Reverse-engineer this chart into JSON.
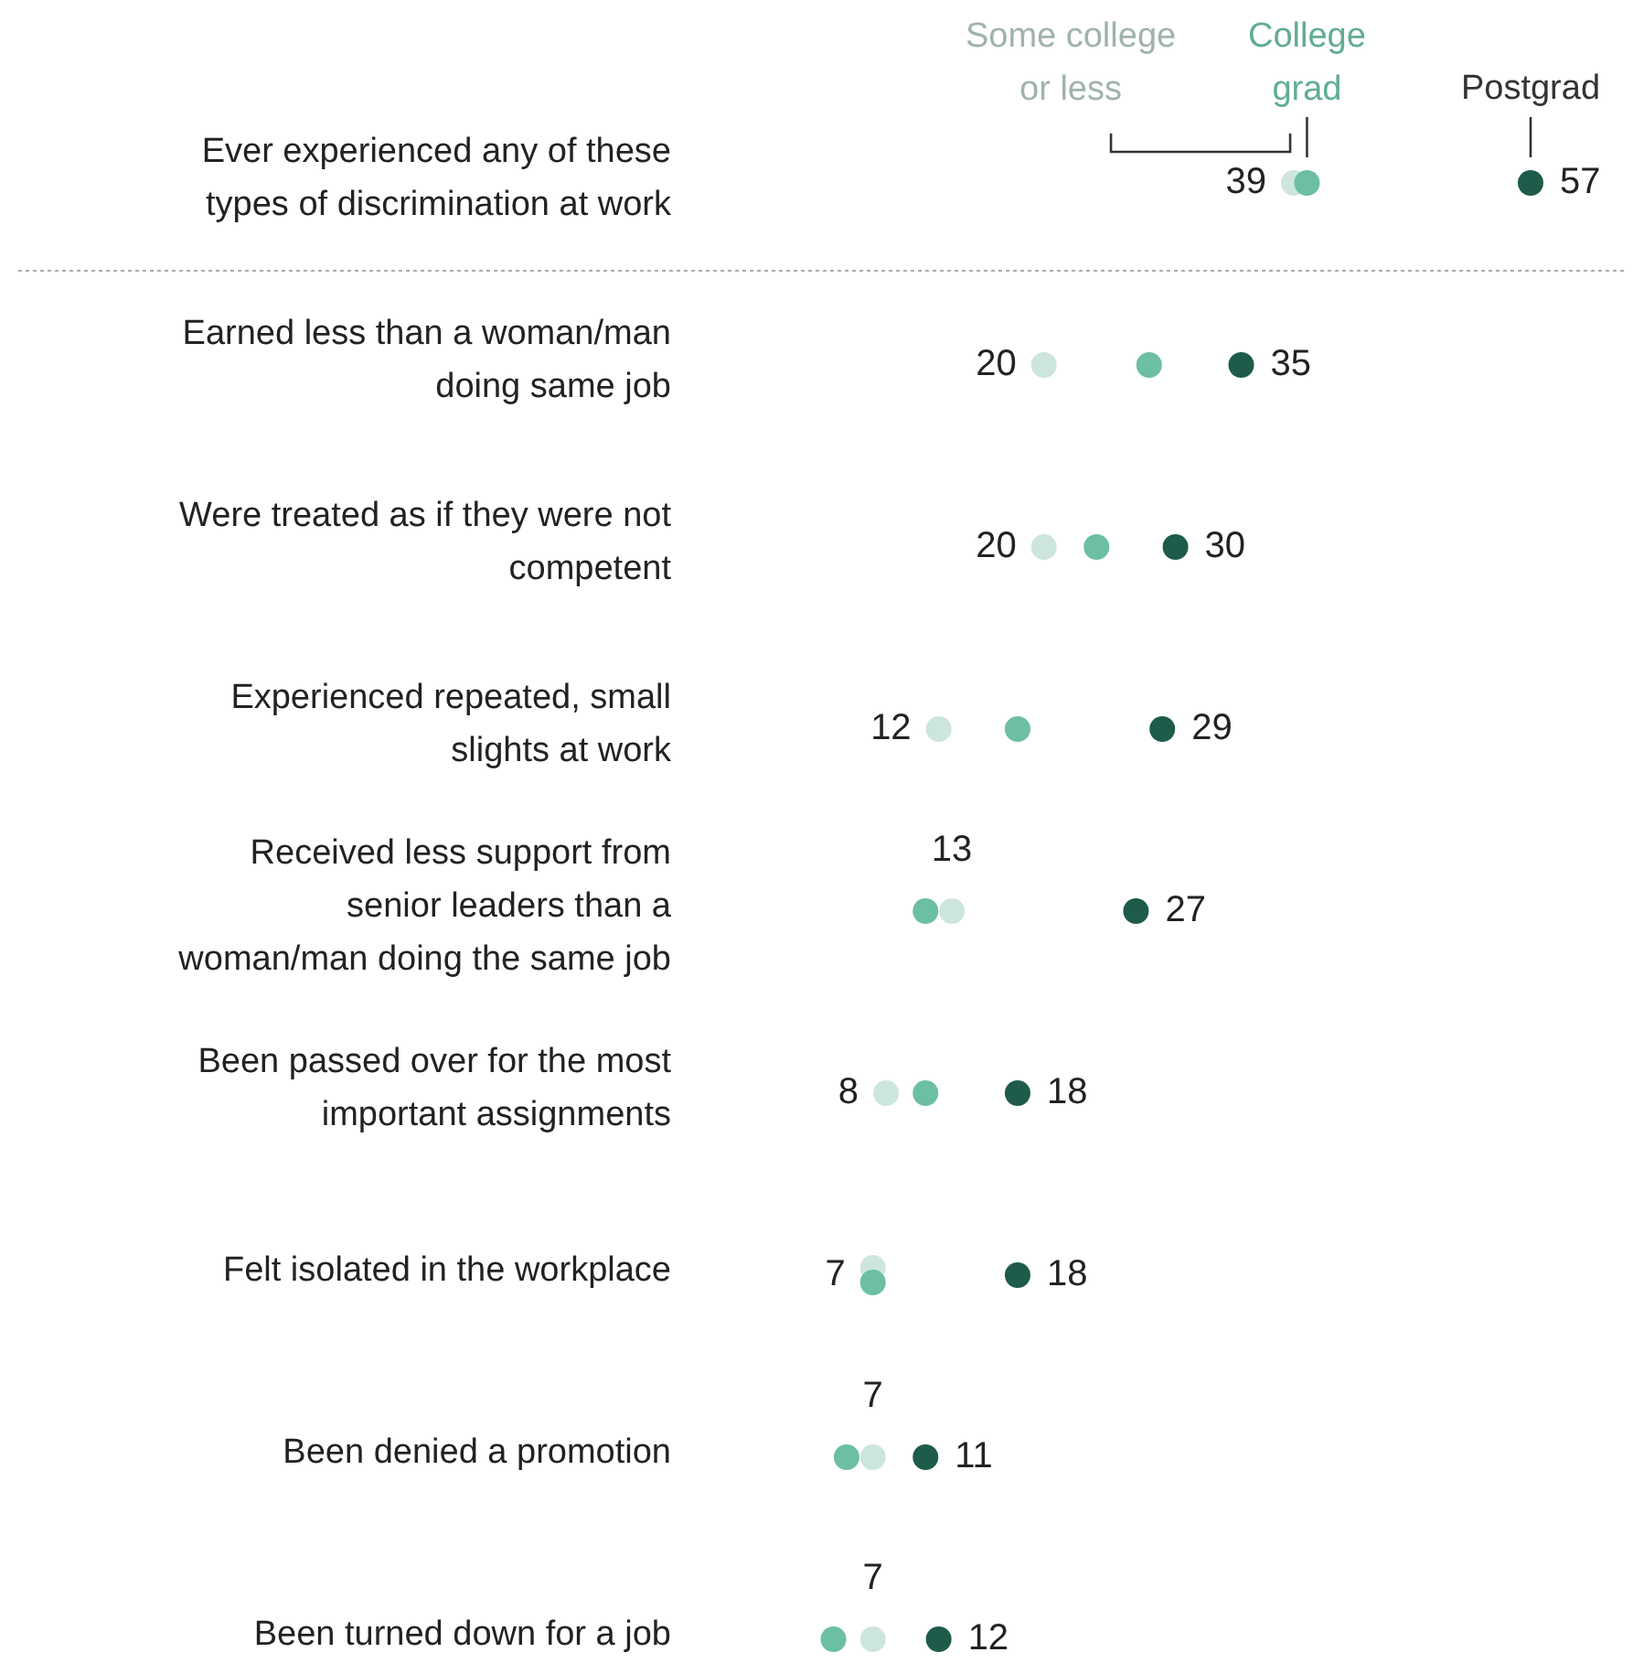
{
  "chart_data": {
    "type": "scatter",
    "orientation": "horizontal",
    "categories": [
      "Ever experienced any of these\ntypes of discrimination at work",
      "Earned less than a woman/man\ndoing same job",
      "Were treated as if they were not\ncompetent",
      "Experienced repeated, small\nslights at work",
      "Received less support from\nsenior leaders than a\nwoman/man doing the same job",
      "Been passed over for the most\nimportant assignments",
      "Felt isolated in the workplace",
      "Been denied a promotion",
      "Been turned down for a job"
    ],
    "series": [
      {
        "name": "Some college\nor less",
        "color": "#cde6dc",
        "values": [
          39,
          20,
          20,
          12,
          13,
          8,
          7,
          7,
          7
        ],
        "value_labels": [
          "39",
          "20",
          "20",
          "12",
          "13",
          "8",
          "7",
          "7",
          "7"
        ]
      },
      {
        "name": "College\ngrad",
        "color": "#6cbfa3",
        "values": [
          40,
          28,
          24,
          18,
          11,
          11,
          7,
          5,
          4
        ]
      },
      {
        "name": "Postgrad",
        "color": "#1e5b4b",
        "values": [
          57,
          35,
          30,
          29,
          27,
          18,
          18,
          11,
          12
        ],
        "value_labels": [
          "57",
          "35",
          "30",
          "29",
          "27",
          "18",
          "18",
          "11",
          "12"
        ]
      }
    ]
  }
}
